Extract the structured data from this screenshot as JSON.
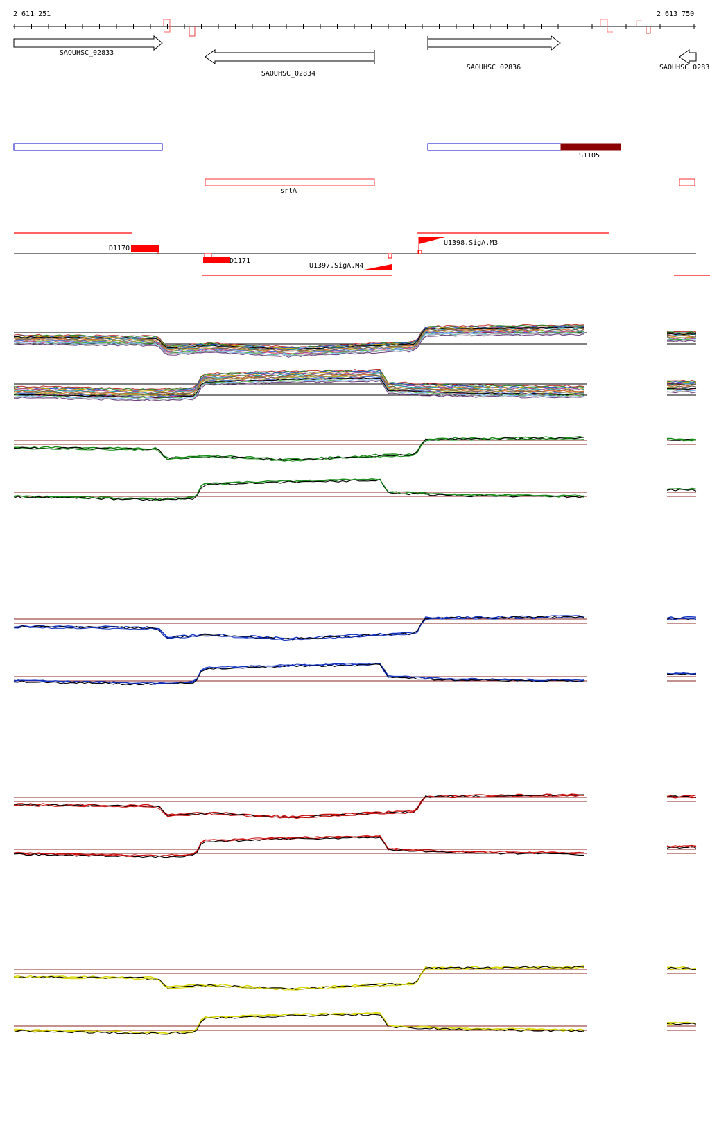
{
  "ruler": {
    "start_label": "2 611 251",
    "end_label": "2 613 750"
  },
  "genes": [
    {
      "label": "SAOUHSC_02833"
    },
    {
      "label": "SAOUHSC_02834"
    },
    {
      "label": "SAOUHSC_02836"
    },
    {
      "label": "SAOUHSC_0283"
    }
  ],
  "annotations": {
    "s1105": "S1105",
    "srta": "srtA"
  },
  "features": {
    "d1170": "D1170",
    "d1171": "D1171",
    "u1397": "U1397.SigA.M4",
    "u1398": "U1398.SigA.M3"
  },
  "colors": {
    "gene_outline": "#000000",
    "operon_blue": "#0000cc",
    "operon_red": "#ff3030",
    "dark_red": "#8b0000",
    "feature_red": "#ff0000",
    "green": "#1a8c1a",
    "blue": "#1030c0",
    "red": "#cc1010",
    "yellow": "#d8d800",
    "reference_line": "#8b2020"
  }
}
